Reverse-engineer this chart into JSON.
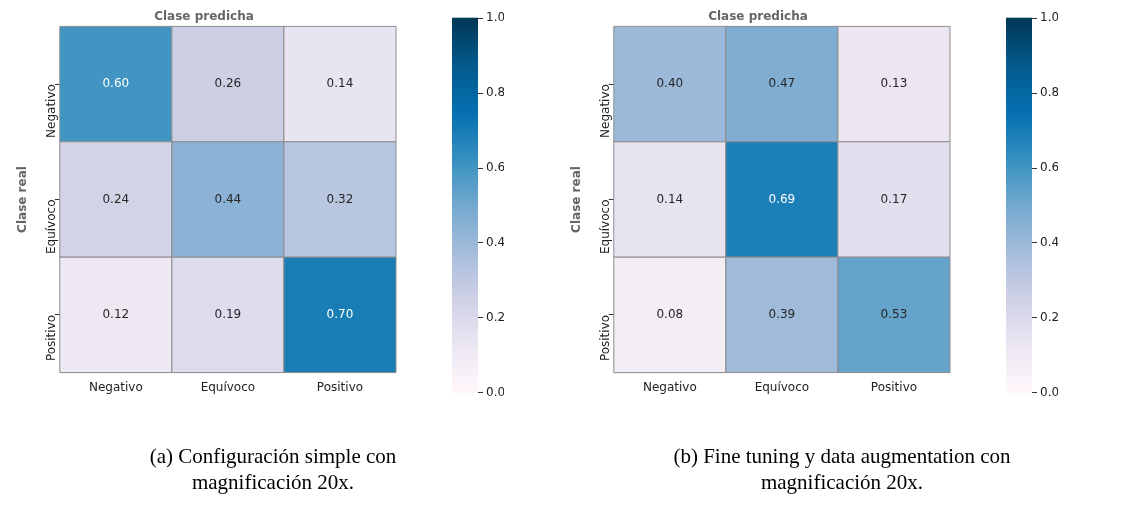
{
  "chart_data": [
    {
      "type": "heatmap",
      "xlabel": "Clase predicha",
      "ylabel": "Clase real",
      "categories": [
        "Negativo",
        "Equívoco",
        "Positivo"
      ],
      "y_categories": [
        "Negativo",
        "Equívoco",
        "Positivo"
      ],
      "cells": [
        [
          0.6,
          0.26,
          0.14
        ],
        [
          0.24,
          0.44,
          0.32
        ],
        [
          0.12,
          0.19,
          0.7
        ]
      ],
      "cell_labels": [
        [
          "0.60",
          "0.26",
          "0.14"
        ],
        [
          "0.24",
          "0.44",
          "0.32"
        ],
        [
          "0.12",
          "0.19",
          "0.70"
        ]
      ],
      "clim": [
        0,
        1
      ],
      "cticks": [
        {
          "value": 0,
          "label": "0.0"
        },
        {
          "value": 0.2,
          "label": "0.2"
        },
        {
          "value": 0.4,
          "label": "0.4"
        },
        {
          "value": 0.6,
          "label": "0.6"
        },
        {
          "value": 0.8,
          "label": "0.8"
        },
        {
          "value": 1,
          "label": "1.0"
        }
      ],
      "annotations": [
        "(a) Configuración simple con magnificación 20x."
      ]
    },
    {
      "type": "heatmap",
      "xlabel": "Clase predicha",
      "ylabel": "Clase real",
      "categories": [
        "Negativo",
        "Equívoco",
        "Positivo"
      ],
      "y_categories": [
        "Negativo",
        "Equívoco",
        "Positivo"
      ],
      "cells": [
        [
          0.4,
          0.47,
          0.13
        ],
        [
          0.14,
          0.69,
          0.17
        ],
        [
          0.08,
          0.39,
          0.53
        ]
      ],
      "cell_labels": [
        [
          "0.40",
          "0.47",
          "0.13"
        ],
        [
          "0.14",
          "0.69",
          "0.17"
        ],
        [
          "0.08",
          "0.39",
          "0.53"
        ]
      ],
      "clim": [
        0,
        1
      ],
      "cticks": [
        {
          "value": 0,
          "label": "0.0"
        },
        {
          "value": 0.2,
          "label": "0.2"
        },
        {
          "value": 0.4,
          "label": "0.4"
        },
        {
          "value": 0.6,
          "label": "0.6"
        },
        {
          "value": 0.8,
          "label": "0.8"
        },
        {
          "value": 1,
          "label": "1.0"
        }
      ],
      "annotations": [
        "(b) Fine tuning y data augmentation con magnificación 20x."
      ]
    }
  ]
}
